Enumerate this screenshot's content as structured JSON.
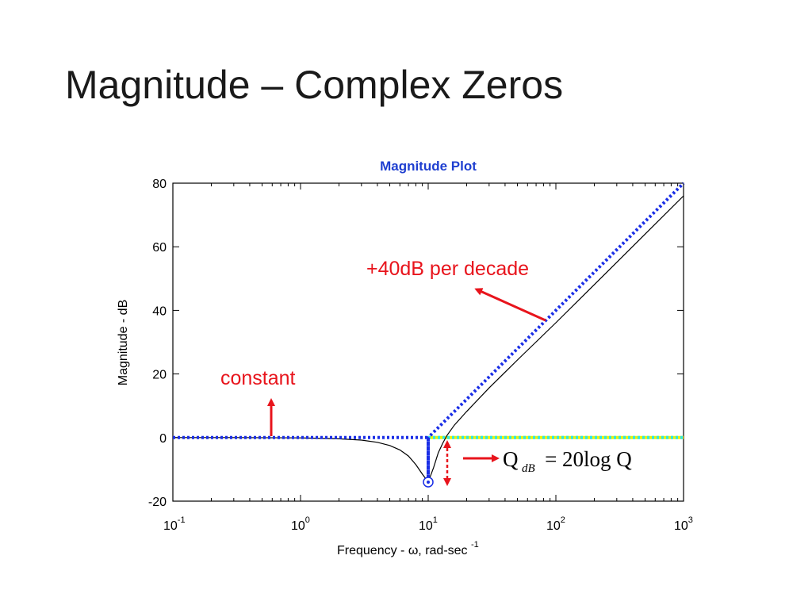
{
  "slide": {
    "title": "Magnitude – Complex Zeros"
  },
  "chart_data": {
    "type": "line",
    "title": "Magnitude Plot",
    "xlabel": "Frequency - ω, rad-sec",
    "xlabel_sup": "-1",
    "ylabel": "Magnitude - dB",
    "xscale": "log",
    "xlim": [
      0.1,
      1000
    ],
    "ylim": [
      -20,
      80
    ],
    "grid": false,
    "x_tick_labels": [
      {
        "base": "10",
        "exp": "-1",
        "value": 0.1
      },
      {
        "base": "10",
        "exp": "0",
        "value": 1
      },
      {
        "base": "10",
        "exp": "1",
        "value": 10
      },
      {
        "base": "10",
        "exp": "2",
        "value": 100
      },
      {
        "base": "10",
        "exp": "3",
        "value": 1000
      }
    ],
    "y_tick_labels": [
      {
        "label": "-20",
        "value": -20
      },
      {
        "label": "0",
        "value": 0
      },
      {
        "label": "20",
        "value": 20
      },
      {
        "label": "40",
        "value": 40
      },
      {
        "label": "60",
        "value": 60
      },
      {
        "label": "80",
        "value": 80
      }
    ],
    "series": [
      {
        "style": "thin solid black (exact)",
        "color": "#000000",
        "x": [
          0.1,
          0.3,
          1,
          2,
          3,
          4,
          5,
          6,
          7,
          8,
          9,
          10,
          11,
          12,
          13,
          14,
          16,
          20,
          30,
          50,
          100,
          300,
          1000
        ],
        "y": [
          0,
          0,
          -0.1,
          -0.4,
          -0.8,
          -1.5,
          -2.5,
          -3.9,
          -5.8,
          -8.5,
          -11.5,
          -14,
          -9.5,
          -4.8,
          -1.8,
          0.6,
          3.9,
          8.2,
          15.6,
          24.4,
          36.1,
          55.1,
          76.0
        ]
      },
      {
        "style": "blue dotted asymptote",
        "color": "#1a2ee6",
        "x": [
          0.1,
          10,
          10,
          10,
          1000
        ],
        "y": [
          0,
          0,
          -14,
          0,
          80
        ]
      },
      {
        "style": "cyan/yellow dotted reference",
        "color": "#2fe6e6",
        "color2": "#eaf20a",
        "x": [
          10,
          1000
        ],
        "y": [
          0,
          0
        ]
      }
    ],
    "markers": [
      {
        "shape": "circle",
        "color": "#1a2ee6",
        "x": 10,
        "y": -14
      }
    ],
    "annotations": [
      {
        "text": "+40dB per decade",
        "color": "#e8141c"
      },
      {
        "text": "constant",
        "color": "#e8141c"
      }
    ],
    "formula": {
      "main": "Q",
      "sub": "dB",
      "rhs": "= 20log Q"
    }
  }
}
